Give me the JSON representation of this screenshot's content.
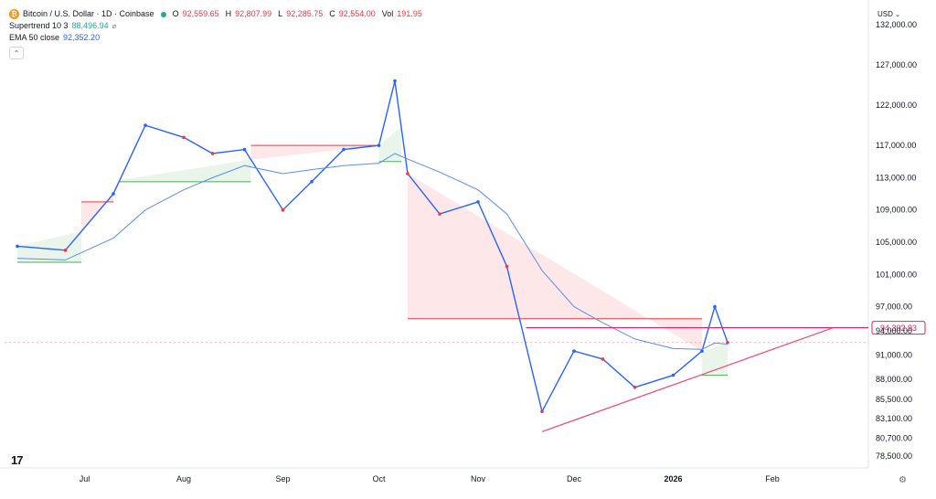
{
  "header": {
    "symbol": "Bitcoin / U.S. Dollar · 1D · Coinbase",
    "ohlc": {
      "o_key": "O",
      "o": "92,559.65",
      "h_key": "H",
      "h": "92,807.99",
      "l_key": "L",
      "l": "92,285.75",
      "c_key": "C",
      "c": "92,554.00",
      "vol_key": "Vol",
      "vol": "191.95"
    },
    "supertrend_name": "Supertrend 10 3",
    "supertrend_value": "88,496.94",
    "ema_name": "EMA 50 close",
    "ema_value": "92,352.20",
    "currency": "USD",
    "brand": "17"
  },
  "colors": {
    "up": "#2962ff",
    "down": "#f23645",
    "ema": "#5b8def",
    "supertrend_up": "#4caf50",
    "supertrend_down": "#f23645",
    "resistance": "#e91e63",
    "trendline": "#f0467a"
  },
  "chart_data": {
    "type": "line",
    "symbol": "BTCUSD",
    "timeframe": "1D",
    "x": [
      "Jun 10",
      "Jun 25",
      "Jul 10",
      "Jul 20",
      "Aug 1",
      "Aug 10",
      "Aug 20",
      "Sep 1",
      "Sep 10",
      "Sep 20",
      "Oct 1",
      "Oct 6",
      "Oct 10",
      "Oct 20",
      "Nov 1",
      "Nov 10",
      "Nov 21",
      "Dec 1",
      "Dec 10",
      "Dec 20",
      "Jan 1",
      "Jan 10",
      "Jan 14",
      "Jan 18"
    ],
    "series": [
      {
        "name": "BTCUSD",
        "values": [
          104500,
          104000,
          111000,
          119500,
          118000,
          116000,
          116500,
          109000,
          112500,
          116500,
          117000,
          125000,
          113500,
          108500,
          110000,
          102000,
          84000,
          91500,
          90500,
          87000,
          88500,
          91500,
          97000,
          92554
        ]
      },
      {
        "name": "EMA 50 close",
        "values": [
          103000,
          102800,
          105500,
          109000,
          111500,
          113000,
          114500,
          113500,
          114000,
          114500,
          114800,
          116000,
          115300,
          113700,
          111500,
          108500,
          101500,
          97000,
          95000,
          93000,
          91800,
          91700,
          92500,
          92352
        ]
      }
    ],
    "supertrend": [
      {
        "name": "Supertrend 10 3 up",
        "x": [
          "Jun 10",
          "Jun 30"
        ],
        "values": [
          102500,
          102500
        ]
      },
      {
        "name": "Supertrend 10 3 down",
        "x": [
          "Jun 30",
          "Jul 10"
        ],
        "values": [
          110000,
          110000
        ]
      },
      {
        "name": "Supertrend 10 3 up",
        "x": [
          "Jul 12",
          "Aug 22"
        ],
        "values": [
          112500,
          112500
        ]
      },
      {
        "name": "Supertrend 10 3 down",
        "x": [
          "Aug 22",
          "Oct 1"
        ],
        "values": [
          117000,
          117000
        ]
      },
      {
        "name": "Supertrend 10 3 up",
        "x": [
          "Oct 1",
          "Oct 8"
        ],
        "values": [
          115000,
          115000
        ]
      },
      {
        "name": "Supertrend 10 3 down",
        "x": [
          "Oct 10",
          "Jan 10"
        ],
        "values": [
          95500,
          95500
        ]
      },
      {
        "name": "Supertrend 10 3 up",
        "x": [
          "Jan 10",
          "Jan 18"
        ],
        "values": [
          88496.94,
          88496.94
        ]
      }
    ],
    "price_label": "94,392.93",
    "current_price": 92554,
    "resistance": {
      "value": 94392.93,
      "x_start": "Nov 16"
    },
    "trendline": {
      "x": [
        "Nov 21",
        "Feb 20"
      ],
      "values": [
        81500,
        94392.93
      ]
    },
    "y_ticks": [
      "132,000.00",
      "127,000.00",
      "122,000.00",
      "117,000.00",
      "113,000.00",
      "109,000.00",
      "105,000.00",
      "101,000.00",
      "97,000.00",
      "94,000.00",
      "91,000.00",
      "88,000.00",
      "85,500.00",
      "83,100.00",
      "80,700.00",
      "78,500.00"
    ],
    "x_ticks": [
      "Jul",
      "Aug",
      "Sep",
      "Oct",
      "Nov",
      "Dec",
      "2026",
      "Feb"
    ],
    "ylim": [
      77000,
      133000
    ],
    "ylabel": "",
    "xlabel": "",
    "grid": false,
    "legend": "top-left"
  }
}
